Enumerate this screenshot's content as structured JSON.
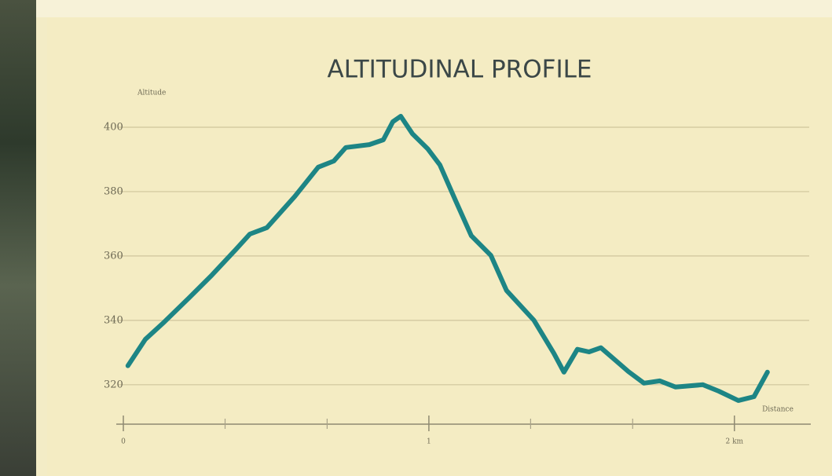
{
  "chart_data": {
    "type": "line",
    "title": "ALTITUDINAL PROFILE",
    "y_label": "Altitude",
    "x_label": "Distance",
    "x": [
      0.015,
      0.072,
      0.134,
      0.213,
      0.29,
      0.368,
      0.414,
      0.47,
      0.561,
      0.638,
      0.689,
      0.728,
      0.805,
      0.851,
      0.882,
      0.908,
      0.946,
      0.997,
      1.036,
      1.087,
      1.139,
      1.203,
      1.254,
      1.344,
      1.409,
      1.442,
      1.486,
      1.524,
      1.563,
      1.614,
      1.653,
      1.704,
      1.756,
      1.807,
      1.897,
      1.949,
      2.013,
      2.064,
      2.108
    ],
    "values": [
      325.9,
      334.1,
      339.5,
      346.8,
      354.1,
      362.0,
      366.8,
      368.8,
      378.5,
      387.6,
      389.5,
      393.7,
      394.6,
      396.1,
      401.7,
      403.4,
      398.0,
      393.2,
      388.3,
      377.3,
      366.3,
      360.2,
      349.3,
      340.0,
      329.8,
      323.9,
      331.0,
      330.2,
      331.5,
      327.3,
      324.1,
      320.5,
      321.2,
      319.3,
      320.0,
      318.0,
      315.1,
      316.3,
      323.9
    ],
    "color": "#1d8585",
    "xlim": [
      0,
      2.25
    ],
    "ylim": [
      308,
      410
    ],
    "xticks": [
      0,
      1,
      {
        "value": 2,
        "label": "2 km"
      }
    ],
    "xminorticks": [
      0.333,
      0.667,
      1.333,
      1.667
    ],
    "yticks": [
      320,
      340,
      360,
      380,
      400
    ],
    "grid": true
  }
}
